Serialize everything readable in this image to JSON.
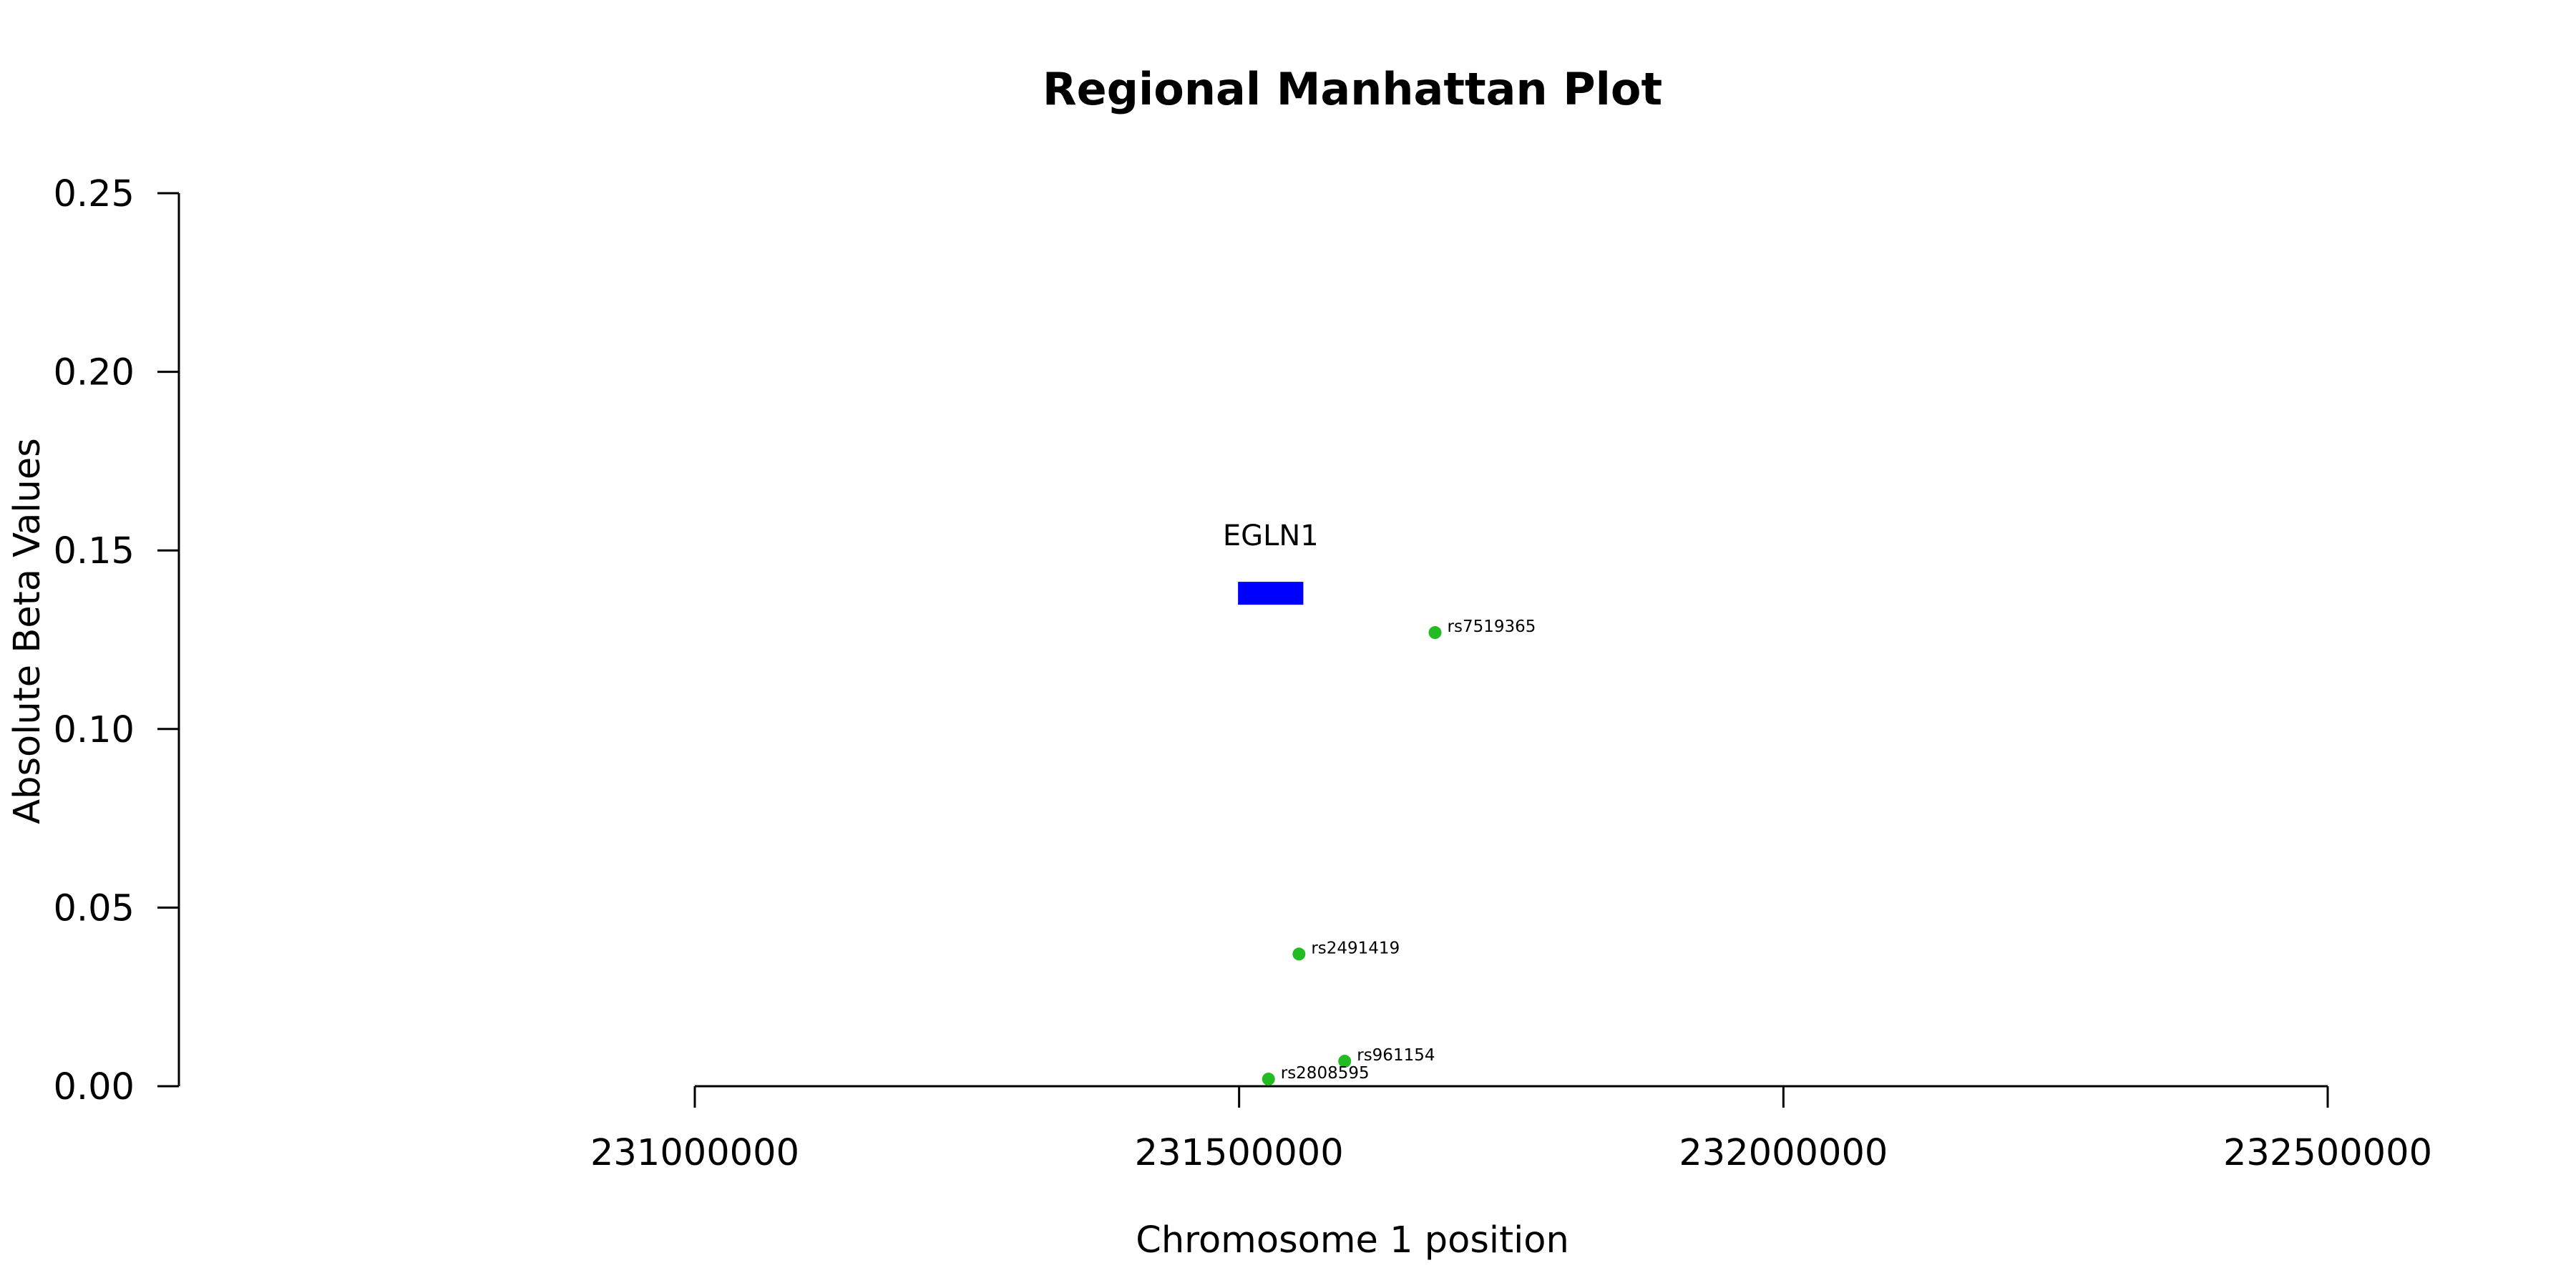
{
  "chart_data": {
    "type": "scatter",
    "title": "Regional Manhattan Plot",
    "xlabel": "Chromosome 1 position",
    "ylabel": "Absolute Beta Values",
    "xlim": [
      231000000,
      232500000
    ],
    "ylim": [
      0,
      0.25
    ],
    "x_ticks": [
      231000000,
      231500000,
      232000000,
      232500000
    ],
    "x_tick_labels": [
      "231000000",
      "231500000",
      "232000000",
      "232500000"
    ],
    "y_ticks": [
      0,
      0.05,
      0.1,
      0.15,
      0.2,
      0.25
    ],
    "y_tick_labels": [
      "0.00",
      "0.05",
      "0.10",
      "0.15",
      "0.20",
      "0.25"
    ],
    "grid": false,
    "legend": "none",
    "point_color": "#22bb22",
    "points": [
      {
        "label": "rs7519365",
        "x": 231680000,
        "y": 0.127
      },
      {
        "label": "rs2491419",
        "x": 231555000,
        "y": 0.037
      },
      {
        "label": "rs961154",
        "x": 231597000,
        "y": 0.007
      },
      {
        "label": "rs2808595",
        "x": 231527000,
        "y": 0.002
      }
    ],
    "genes": [
      {
        "name": "EGLN1",
        "start": 231499000,
        "end": 231559000,
        "y": 0.138,
        "color": "#0000ff"
      }
    ]
  }
}
